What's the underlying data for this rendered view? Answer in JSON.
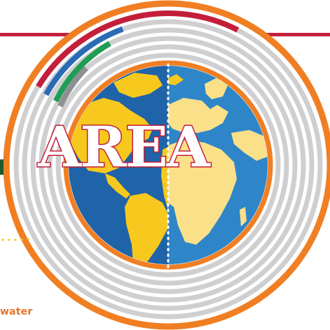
{
  "title": "AREA",
  "labels": {
    "water": "water"
  },
  "colors": {
    "ocean_left": "#1f63a8",
    "ocean_right": "#2e86c8",
    "land_left": "#f7c81e",
    "land_right": "#fbe08a",
    "ring": "#cfcfd1",
    "orange": "#f07f24",
    "red": "#c31f3b",
    "blue": "#2a6bb5",
    "green": "#1f9d55",
    "gray": "#8e8e93",
    "dark_green": "#1d5c2a"
  },
  "icons": [
    "globe-icon",
    "dotted-divider-icon"
  ]
}
